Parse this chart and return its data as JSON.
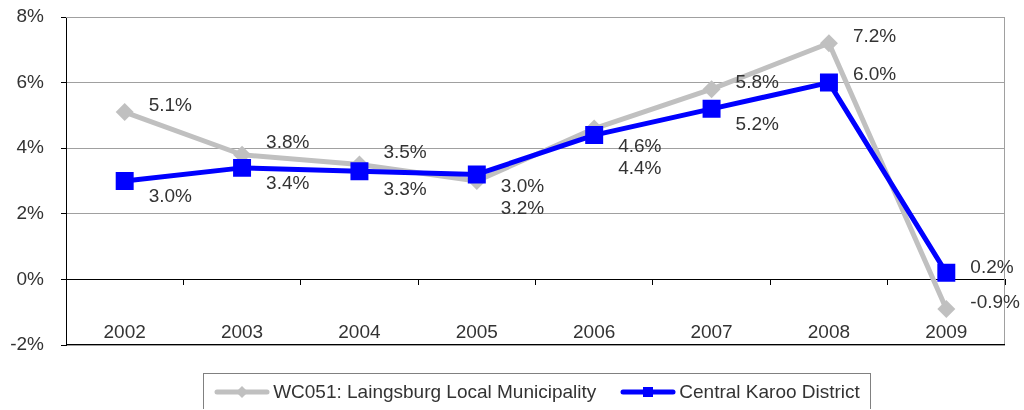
{
  "chart_data": {
    "type": "line",
    "categories": [
      "2002",
      "2003",
      "2004",
      "2005",
      "2006",
      "2007",
      "2008",
      "2009"
    ],
    "series": [
      {
        "name": "WC051: Laingsburg Local Municipality",
        "color": "#c0c0c0",
        "marker": "diamond",
        "values": [
          5.1,
          3.8,
          3.5,
          3.0,
          4.6,
          5.8,
          7.2,
          -0.9
        ],
        "value_labels": [
          "5.1%",
          "3.8%",
          "3.5%",
          "3.0%",
          "4.6%",
          "5.8%",
          "7.2%",
          "-0.9%"
        ]
      },
      {
        "name": "Central Karoo District",
        "color": "#0000ff",
        "marker": "square",
        "values": [
          3.0,
          3.4,
          3.3,
          3.2,
          4.4,
          5.2,
          6.0,
          0.2
        ],
        "value_labels": [
          "3.0%",
          "3.4%",
          "3.3%",
          "3.2%",
          "4.4%",
          "5.2%",
          "6.0%",
          "0.2%"
        ]
      }
    ],
    "ylim": [
      -2,
      8
    ],
    "yticks": [
      {
        "value": -2,
        "label": "-2%"
      },
      {
        "value": 0,
        "label": "0%"
      },
      {
        "value": 2,
        "label": "2%"
      },
      {
        "value": 4,
        "label": "4%"
      },
      {
        "value": 6,
        "label": "6%"
      },
      {
        "value": 8,
        "label": "8%"
      }
    ],
    "grid": "y",
    "legend": "bottom"
  }
}
